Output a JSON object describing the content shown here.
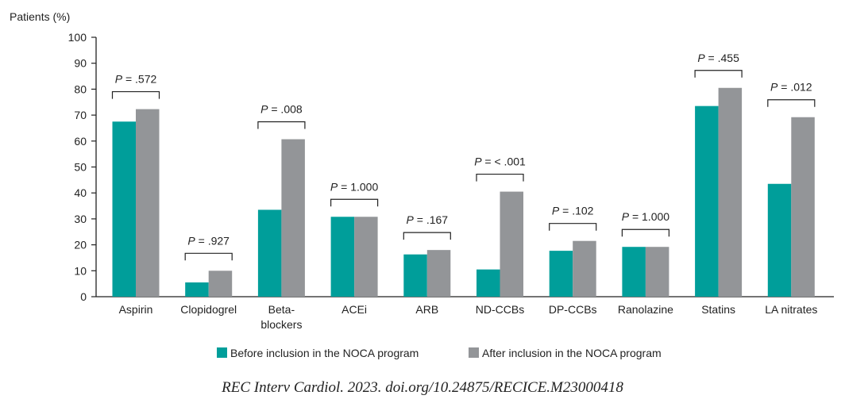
{
  "chart_data": {
    "type": "bar",
    "ylabel": "Patients (%)",
    "ylim": [
      0,
      100
    ],
    "yticks": [
      0,
      10,
      20,
      30,
      40,
      50,
      60,
      70,
      80,
      90,
      100
    ],
    "grid": false,
    "legend_placement": "bottom",
    "categories": [
      "Aspirin",
      "Clopidogrel",
      "Beta-blockers",
      "ACEi",
      "ARB",
      "ND-CCBs",
      "DP-CCBs",
      "Ranolazine",
      "Statins",
      "LA nitrates"
    ],
    "category_lines": [
      [
        "Aspirin"
      ],
      [
        "Clopidogrel"
      ],
      [
        "Beta-",
        "blockers"
      ],
      [
        "ACEi"
      ],
      [
        "ARB"
      ],
      [
        "ND-CCBs"
      ],
      [
        "DP-CCBs"
      ],
      [
        "Ranolazine"
      ],
      [
        "Statins"
      ],
      [
        "LA nitrates"
      ]
    ],
    "series": [
      {
        "name": "Before inclusion in the NOCA program",
        "color": "#009e9a",
        "values": [
          67.5,
          5.5,
          33.5,
          30.8,
          16.3,
          10.5,
          17.7,
          19.2,
          73.5,
          43.5
        ]
      },
      {
        "name": "After inclusion in the NOCA program",
        "color": "#939598",
        "values": [
          72.3,
          10,
          60.7,
          30.8,
          18,
          40.5,
          21.5,
          19.2,
          80.5,
          69.2
        ]
      }
    ],
    "annotations": [
      "P = .572",
      "P = .927",
      "P = .008",
      "P = 1.000",
      "P = .167",
      "P = < .001",
      "P = .102",
      "P = 1.000",
      "P = .455",
      "P = .012"
    ]
  },
  "footer": "REC Interv Cardiol. 2023. doi.org/10.24875/RECICE.M23000418"
}
